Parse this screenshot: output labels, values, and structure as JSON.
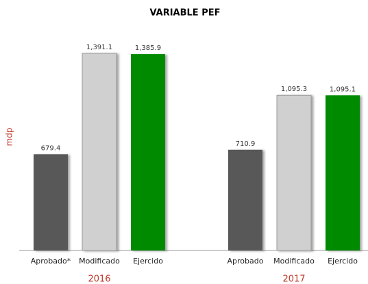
{
  "chart_data": {
    "type": "grouped-bar",
    "title": "VARIABLE PEF",
    "ylabel": "mdp",
    "groups": [
      {
        "name": "2016",
        "categories": [
          "Aprobado*",
          "Modificado",
          "Ejercido"
        ],
        "values": [
          679.4,
          1391.1,
          1385.9
        ],
        "value_labels": [
          "679.4",
          "1,391.1",
          "1,385.9"
        ]
      },
      {
        "name": "2017",
        "categories": [
          "Aprobado",
          "Modificado",
          "Ejercido"
        ],
        "values": [
          710.9,
          1095.3,
          1095.1
        ],
        "value_labels": [
          "710.9",
          "1,095.3",
          "1,095.1"
        ]
      }
    ],
    "colors": [
      "#595959",
      "#d0d0d0",
      "#008a00"
    ]
  }
}
